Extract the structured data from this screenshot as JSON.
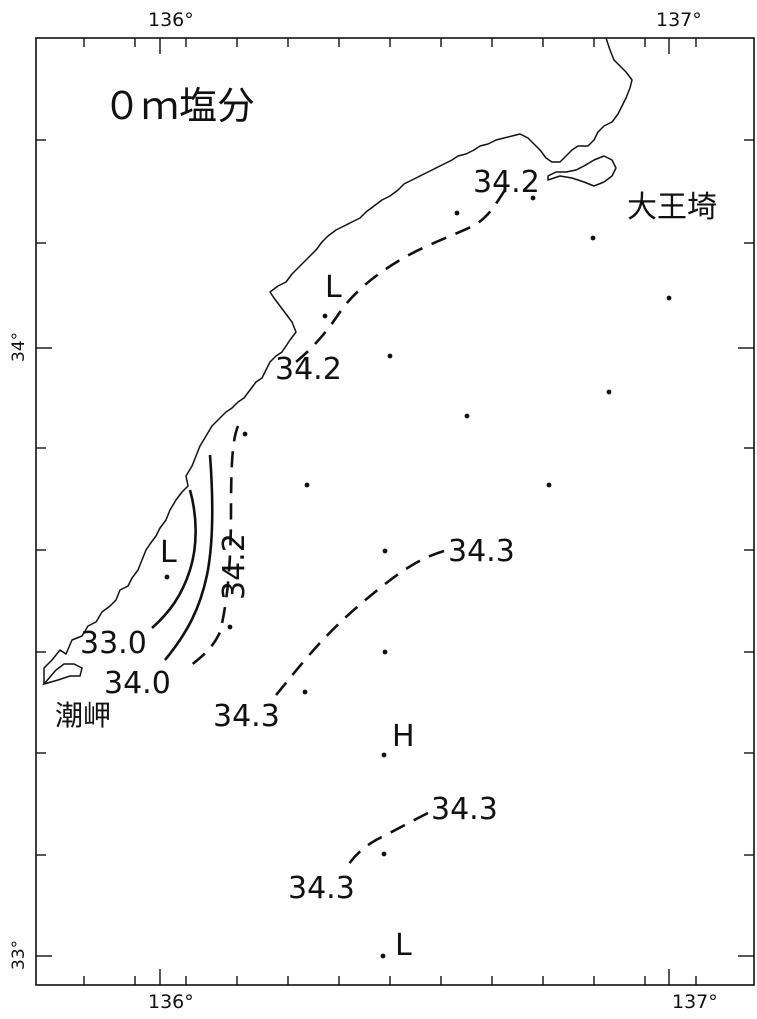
{
  "title": "０ｍ塩分",
  "axes": {
    "top_ticks": [
      "136°",
      "137°"
    ],
    "bottom_ticks": [
      "136°",
      "137°"
    ],
    "left_ticks": [
      "34°",
      "33°"
    ]
  },
  "places": {
    "daiozaki": "大王埼",
    "shionomisaki": "潮岬"
  },
  "contour_labels": {
    "top_right": "34.2",
    "upper_left": "34.2",
    "vertical": "34.2",
    "outer_330": "33.0",
    "inner_340": "34.0",
    "mid_343_right": "34.3",
    "mid_343_left": "34.3",
    "low_343_right": "34.3",
    "low_343_left": "34.3"
  },
  "extrema": {
    "low_upper": "L",
    "low_coast": "L",
    "high_center": "H",
    "low_bottom": "L"
  },
  "colors": {
    "ink": "#111111",
    "background": "#ffffff"
  }
}
